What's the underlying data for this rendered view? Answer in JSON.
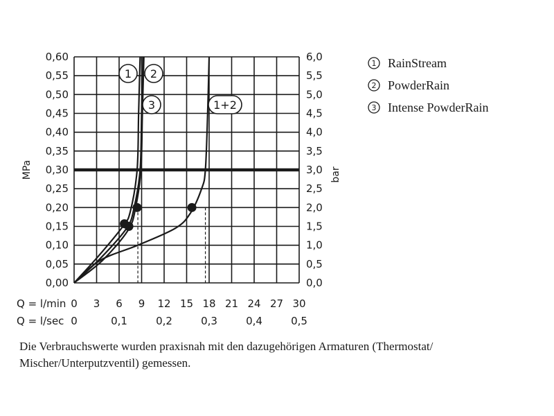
{
  "chart_data": {
    "type": "line",
    "ylabel_left": "MPa",
    "ylabel_right": "bar",
    "ylim": [
      0,
      0.6
    ],
    "y_ticks": [
      "0,00",
      "0,05",
      "0,10",
      "0,15",
      "0,20",
      "0,25",
      "0,30",
      "0,35",
      "0,40",
      "0,45",
      "0,50",
      "0,55",
      "0,60"
    ],
    "y2_ticks": [
      "0,0",
      "0,5",
      "1,0",
      "1,5",
      "2,0",
      "2,5",
      "3,0",
      "3,5",
      "4,0",
      "4,5",
      "5,0",
      "5,5",
      "6,0"
    ],
    "xlim": [
      0,
      30
    ],
    "x_row1_label": "Q = l/min",
    "x_row1_ticks": [
      "0",
      "3",
      "6",
      "9",
      "12",
      "15",
      "18",
      "21",
      "24",
      "27",
      "30"
    ],
    "x_row2_label": "Q = l/sec",
    "x_row2_ticks": [
      "0",
      "0,1",
      "0,2",
      "0,3",
      "0,4",
      "0,5"
    ],
    "reference_pressure": 0.3,
    "series": [
      {
        "name": "RainStream",
        "marker": "1",
        "x": [
          0,
          3.2,
          6.5,
          7.5,
          8.4,
          8.6,
          8.8
        ],
        "y": [
          0,
          0.07,
          0.15,
          0.19,
          0.3,
          0.45,
          0.6
        ],
        "point": [
          6.7,
          0.157
        ]
      },
      {
        "name": "PowderRain",
        "marker": "2",
        "x": [
          0,
          3.5,
          7.0,
          8.0,
          8.8,
          9.0,
          9.2
        ],
        "y": [
          0,
          0.065,
          0.145,
          0.2,
          0.3,
          0.45,
          0.6
        ],
        "point": [
          8.4,
          0.2
        ]
      },
      {
        "name": "Intense PowderRain",
        "marker": "3",
        "x": [
          0,
          3.8,
          7.2,
          8.2,
          8.9,
          9.1,
          9.3
        ],
        "y": [
          0,
          0.06,
          0.14,
          0.2,
          0.3,
          0.45,
          0.6
        ],
        "point": [
          7.3,
          0.15
        ]
      },
      {
        "name": "",
        "marker": "1+2",
        "x": [
          0,
          3.5,
          8.5,
          13.5,
          15.5,
          17.0,
          17.5,
          17.8,
          18.0
        ],
        "y": [
          0,
          0.06,
          0.1,
          0.145,
          0.185,
          0.25,
          0.3,
          0.45,
          0.6
        ],
        "point": [
          15.7,
          0.2
        ]
      }
    ],
    "dashed_guides_x": [
      8.5,
      17.5
    ],
    "legend": [
      {
        "num": "1",
        "text": "RainStream"
      },
      {
        "num": "2",
        "text": "PowderRain"
      },
      {
        "num": "3",
        "text": "Intense PowderRain"
      }
    ],
    "legend_position": "right",
    "grid": true
  },
  "caption": "Die Verbrauchswerte wurden praxisnah mit den dazugehörigen Armaturen (Thermostat/ Mischer/Unterputzventil) gemessen."
}
